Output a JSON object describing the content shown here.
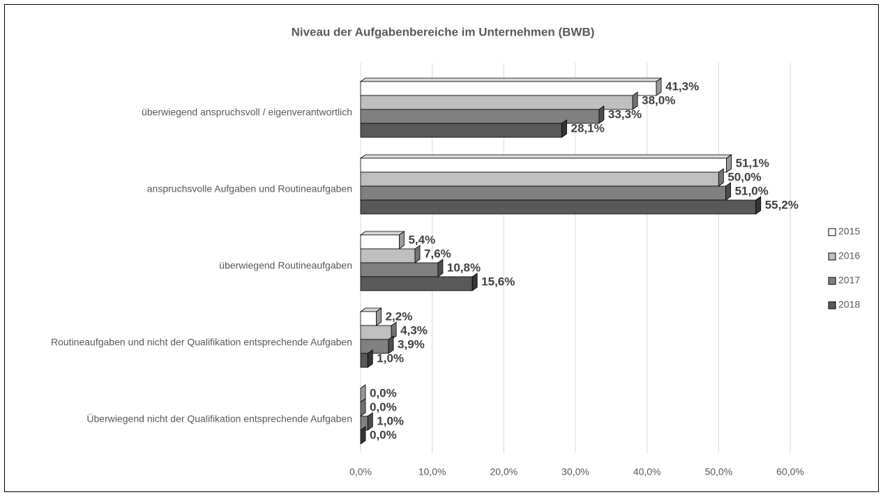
{
  "chart_data": {
    "type": "bar",
    "orientation": "horizontal",
    "title": "Niveau der Aufgabenbereiche im Unternehmen (BWB)",
    "categories": [
      "überwiegend anspruchsvoll / eigenverantwortlich",
      "anspruchsvolle Aufgaben und Routineaufgaben",
      "überwiegend Routineaufgaben",
      "Routineaufgaben und nicht der Qualifikation entsprechende Aufgaben",
      "Überwiegend nicht der Qualifikation entsprechende Aufgaben"
    ],
    "series": [
      {
        "name": "2015",
        "color": "#ffffff",
        "values": [
          41.3,
          51.1,
          5.4,
          2.2,
          0.0
        ],
        "value_labels": [
          "41,3%",
          "51,1%",
          "5,4%",
          "2,2%",
          "0,0%"
        ]
      },
      {
        "name": "2016",
        "color": "#bfbfbf",
        "values": [
          38.0,
          50.0,
          7.6,
          4.3,
          0.0
        ],
        "value_labels": [
          "38,0%",
          "50,0%",
          "7,6%",
          "4,3%",
          "0,0%"
        ]
      },
      {
        "name": "2017",
        "color": "#808080",
        "values": [
          33.3,
          51.0,
          10.8,
          3.9,
          1.0
        ],
        "value_labels": [
          "33,3%",
          "51,0%",
          "10,8%",
          "3,9%",
          "1,0%"
        ]
      },
      {
        "name": "2018",
        "color": "#595959",
        "values": [
          28.1,
          55.2,
          15.6,
          1.0,
          0.0
        ],
        "value_labels": [
          "28,1%",
          "55,2%",
          "15,6%",
          "1,0%",
          "0,0%"
        ]
      }
    ],
    "xlim": [
      0,
      60
    ],
    "xticks": [
      {
        "value": 0,
        "label": "0,0%"
      },
      {
        "value": 10,
        "label": "10,0%"
      },
      {
        "value": 20,
        "label": "20,0%"
      },
      {
        "value": 30,
        "label": "30,0%"
      },
      {
        "value": 40,
        "label": "40,0%"
      },
      {
        "value": 50,
        "label": "50,0%"
      },
      {
        "value": 60,
        "label": "60,0%"
      }
    ],
    "grid": true,
    "legend": "right"
  }
}
